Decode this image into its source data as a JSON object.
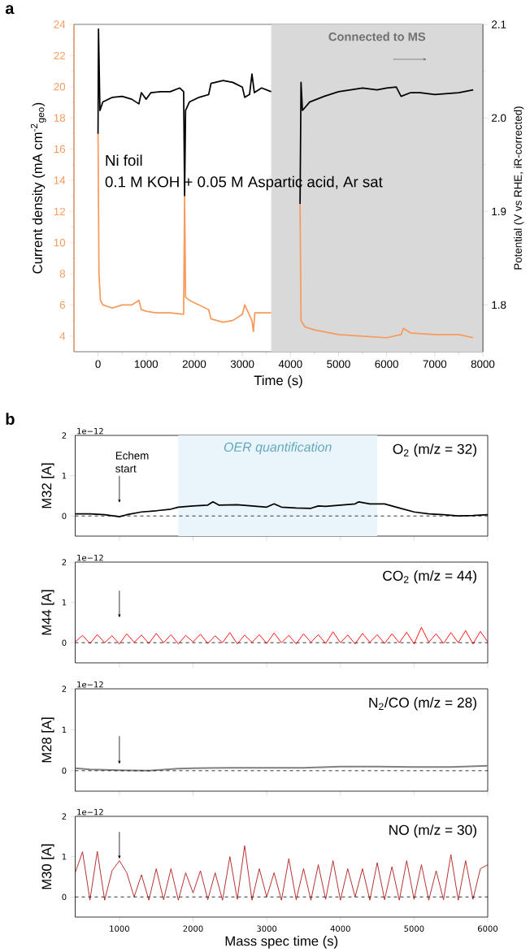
{
  "chart_data": [
    {
      "type": "line",
      "title": "a",
      "xlabel": "Time (s)",
      "ylabel": "Current density (mA cm$^{-2}$$_{geo}$)",
      "y2label": "Potential (V vs RHE, iR-corrected)",
      "series": [
        {
          "color": "#f79a5b",
          "x": [
            0,
            20,
            50,
            100,
            300,
            500,
            700,
            850,
            900,
            1000,
            1200,
            1500,
            1780,
            1800,
            1820,
            1900,
            2100,
            2300,
            2350,
            2600,
            2800,
            3000,
            3050,
            3200,
            3230,
            3260,
            3400,
            3600,
            3900,
            4200,
            4220,
            4300,
            4500,
            5000,
            5500,
            6000,
            6300,
            6350,
            6500,
            7000,
            7500,
            7800
          ],
          "values": [
            17,
            8,
            6.3,
            6.0,
            5.8,
            6.0,
            6.0,
            6.3,
            5.7,
            5.6,
            5.5,
            5.5,
            5.4,
            13,
            6.5,
            6.3,
            6.0,
            5.7,
            5.1,
            4.9,
            5.0,
            5.4,
            6.0,
            5.0,
            4.3,
            5.5,
            5.5,
            5.5,
            null,
            12.5,
            5.0,
            4.6,
            4.4,
            4.1,
            4.0,
            3.9,
            4.1,
            4.5,
            4.2,
            4.1,
            4.1,
            3.9
          ]
        },
        {
          "color": "#000000",
          "axis": "y2",
          "x": [
            0,
            10,
            40,
            100,
            300,
            500,
            700,
            850,
            900,
            1000,
            1100,
            1300,
            1500,
            1700,
            1780,
            1800,
            1820,
            1900,
            2100,
            2300,
            2350,
            2600,
            2800,
            3000,
            3050,
            3150,
            3200,
            3250,
            3400,
            3600,
            3900,
            4200,
            4220,
            4250,
            4400,
            4700,
            5000,
            5500,
            5800,
            6000,
            6200,
            6300,
            6500,
            6700,
            7000,
            7500,
            7800
          ],
          "values": [
            1.983,
            2.095,
            2.008,
            2.017,
            2.022,
            2.023,
            2.02,
            2.015,
            2.027,
            2.02,
            2.027,
            2.028,
            2.028,
            2.032,
            2.028,
            1.917,
            2.008,
            2.017,
            2.022,
            2.025,
            2.037,
            2.04,
            2.038,
            2.033,
            2.022,
            2.025,
            2.047,
            2.027,
            2.032,
            2.028,
            null,
            1.908,
            2.038,
            2.008,
            2.017,
            2.023,
            2.028,
            2.032,
            2.03,
            2.032,
            2.033,
            2.023,
            2.027,
            2.027,
            2.025,
            2.027,
            2.03
          ]
        }
      ],
      "xlim": [
        -500,
        8000
      ],
      "xticks": [
        0,
        1000,
        2000,
        3000,
        4000,
        5000,
        6000,
        7000,
        8000
      ],
      "ylim": [
        3,
        24
      ],
      "yticks": [
        4,
        6,
        8,
        10,
        12,
        14,
        16,
        18,
        20,
        22,
        24
      ],
      "y2lim": [
        1.75,
        2.1
      ],
      "y2ticks": [
        1.8,
        1.9,
        {
          "value": 2.0,
          "label": "2.0"
        },
        2.1
      ],
      "bands": [
        {
          "axis": "x",
          "from": 3600,
          "to": 8000,
          "label": "Connected to MS",
          "color": "#d9d9d9"
        }
      ],
      "annotations": [
        "Ni foil",
        "0.1 M KOH + 0.05 M Aspartic acid, Ar sat"
      ]
    },
    {
      "type": "line",
      "title": "b",
      "ylabel": "M32 [A]",
      "series": [
        {
          "color": "#000000",
          "x": [
            400,
            600,
            800,
            1000,
            1100,
            1300,
            1500,
            1700,
            1800,
            2000,
            2200,
            2270,
            2350,
            2600,
            2800,
            3000,
            3100,
            3200,
            3400,
            3600,
            3700,
            3800,
            4000,
            4200,
            4250,
            4400,
            4600,
            4800,
            5000,
            5200,
            5400,
            5600,
            5800,
            6000
          ],
          "values": [
            0.05,
            0.05,
            0.03,
            -0.02,
            0.03,
            0.1,
            0.13,
            0.17,
            0.22,
            0.25,
            0.27,
            0.35,
            0.27,
            0.28,
            0.25,
            0.22,
            0.3,
            0.22,
            0.2,
            0.19,
            0.25,
            0.24,
            0.27,
            0.3,
            0.35,
            0.3,
            0.3,
            0.2,
            0.1,
            0.05,
            0.03,
            0.0,
            0.01,
            0.03
          ]
        }
      ],
      "xlim": [
        400,
        6000
      ],
      "xticks": [
        1000,
        2000,
        3000,
        4000,
        5000,
        6000
      ],
      "ylim": [
        -0.5,
        2
      ],
      "yticks": [
        0,
        1,
        2
      ],
      "tick_labels": "y",
      "ref_lines": [
        {
          "axis": "y",
          "value": 0,
          "line_style": "dashed",
          "color": "#000000"
        }
      ],
      "bands": [
        {
          "axis": "x",
          "from": 1800,
          "to": 4500,
          "label": "OER quantification",
          "color": "#eaf4fb"
        }
      ],
      "annotations": [
        "1e−12",
        "O$_{2}$ (m/z = 32)",
        "Echem start"
      ]
    },
    {
      "type": "line",
      "ylabel": "M44 [A]",
      "x": [
        400,
        500,
        600,
        700,
        800,
        900,
        1000,
        1100,
        1200,
        1300,
        1400,
        1500,
        1600,
        1700,
        1800,
        1900,
        2000,
        2100,
        2200,
        2300,
        2400,
        2500,
        2600,
        2700,
        2800,
        2900,
        3000,
        3100,
        3200,
        3300,
        3400,
        3500,
        3600,
        3700,
        3800,
        3900,
        4000,
        4100,
        4200,
        4300,
        4400,
        4500,
        4600,
        4700,
        4800,
        4900,
        5000,
        5100,
        5200,
        5300,
        5400,
        5500,
        5600,
        5700,
        5800,
        5900,
        6000
      ],
      "series": [
        {
          "color": "#ff0000",
          "values": [
            0.02,
            0.18,
            -0.02,
            0.2,
            0.0,
            0.17,
            -0.03,
            0.22,
            0.01,
            0.19,
            -0.02,
            0.23,
            0.0,
            0.2,
            -0.03,
            0.18,
            0.02,
            0.21,
            -0.02,
            0.17,
            0.0,
            0.25,
            -0.03,
            0.19,
            0.01,
            0.2,
            -0.02,
            0.24,
            0.0,
            0.18,
            -0.03,
            0.22,
            0.01,
            0.2,
            -0.02,
            0.27,
            0.0,
            0.19,
            -0.03,
            0.23,
            0.01,
            0.2,
            -0.02,
            0.22,
            0.0,
            0.26,
            -0.03,
            0.38,
            0.01,
            0.22,
            -0.02,
            0.25,
            0.0,
            0.3,
            -0.03,
            0.28,
            0.02
          ]
        }
      ],
      "xlim": [
        400,
        6000
      ],
      "xticks": [
        1000,
        2000,
        3000,
        4000,
        5000,
        6000
      ],
      "ylim": [
        -0.5,
        2
      ],
      "yticks": [
        0,
        1,
        2
      ],
      "tick_labels": "y",
      "ref_lines": [
        {
          "axis": "y",
          "value": 0,
          "line_style": "dashed",
          "color": "#000000"
        }
      ],
      "annotations": [
        "1e−12",
        "CO$_{2}$ (m/z = 44)"
      ]
    },
    {
      "type": "line",
      "ylabel": "M28 [A]",
      "series": [
        {
          "color": "#808080",
          "x": [
            400,
            600,
            1000,
            1400,
            1800,
            2000,
            2500,
            3000,
            3500,
            4000,
            4500,
            5000,
            5500,
            6000
          ],
          "values": [
            0.06,
            0.03,
            0.01,
            0.0,
            0.05,
            0.06,
            0.07,
            0.07,
            0.07,
            0.1,
            0.1,
            0.09,
            0.09,
            0.12
          ]
        }
      ],
      "xlim": [
        400,
        6000
      ],
      "xticks": [
        1000,
        2000,
        3000,
        4000,
        5000,
        6000
      ],
      "ylim": [
        -0.5,
        2
      ],
      "yticks": [
        0,
        1,
        2
      ],
      "tick_labels": "y",
      "ref_lines": [
        {
          "axis": "y",
          "value": 0,
          "line_style": "dashed",
          "color": "#000000"
        }
      ],
      "annotations": [
        "1e−12",
        "N$_{2}$/CO (m/z = 28)"
      ]
    },
    {
      "type": "line",
      "ylabel": "M30 [A]",
      "xlabel": "Mass spec time (s)",
      "x": [
        400,
        500,
        600,
        700,
        800,
        900,
        1000,
        1100,
        1200,
        1300,
        1400,
        1500,
        1600,
        1700,
        1800,
        1900,
        2000,
        2100,
        2200,
        2300,
        2400,
        2500,
        2600,
        2700,
        2800,
        2900,
        3000,
        3100,
        3200,
        3300,
        3400,
        3500,
        3600,
        3700,
        3800,
        3900,
        4000,
        4100,
        4200,
        4300,
        4400,
        4500,
        4600,
        4700,
        4800,
        4900,
        5000,
        5100,
        5200,
        5300,
        5400,
        5500,
        5600,
        5700,
        5800,
        5900,
        6000
      ],
      "series": [
        {
          "color": "#b22222",
          "values": [
            0.6,
            1.12,
            -0.08,
            1.13,
            -0.08,
            0.65,
            0.9,
            0.6,
            0.0,
            0.55,
            -0.08,
            0.7,
            -0.07,
            0.7,
            -0.08,
            0.6,
            0.1,
            0.65,
            -0.07,
            0.6,
            -0.08,
            1.0,
            -0.06,
            1.27,
            -0.08,
            0.7,
            0.0,
            0.6,
            -0.08,
            0.95,
            -0.07,
            0.7,
            -0.08,
            0.8,
            -0.06,
            0.9,
            -0.08,
            0.7,
            0.0,
            0.7,
            -0.08,
            0.85,
            -0.07,
            0.75,
            -0.08,
            0.9,
            -0.06,
            0.8,
            -0.08,
            0.65,
            -0.07,
            1.05,
            -0.08,
            0.9,
            -0.06,
            0.7,
            0.8
          ]
        }
      ],
      "xlim": [
        400,
        6000
      ],
      "xticks": [
        1000,
        2000,
        3000,
        4000,
        5000,
        6000
      ],
      "ylim": [
        -0.5,
        2
      ],
      "yticks": [
        0,
        1,
        2
      ],
      "ref_lines": [
        {
          "axis": "y",
          "value": 0,
          "line_style": "dashed",
          "color": "#000000"
        }
      ],
      "annotations": [
        "1e−12",
        "NO (m/z = 30)"
      ]
    }
  ]
}
